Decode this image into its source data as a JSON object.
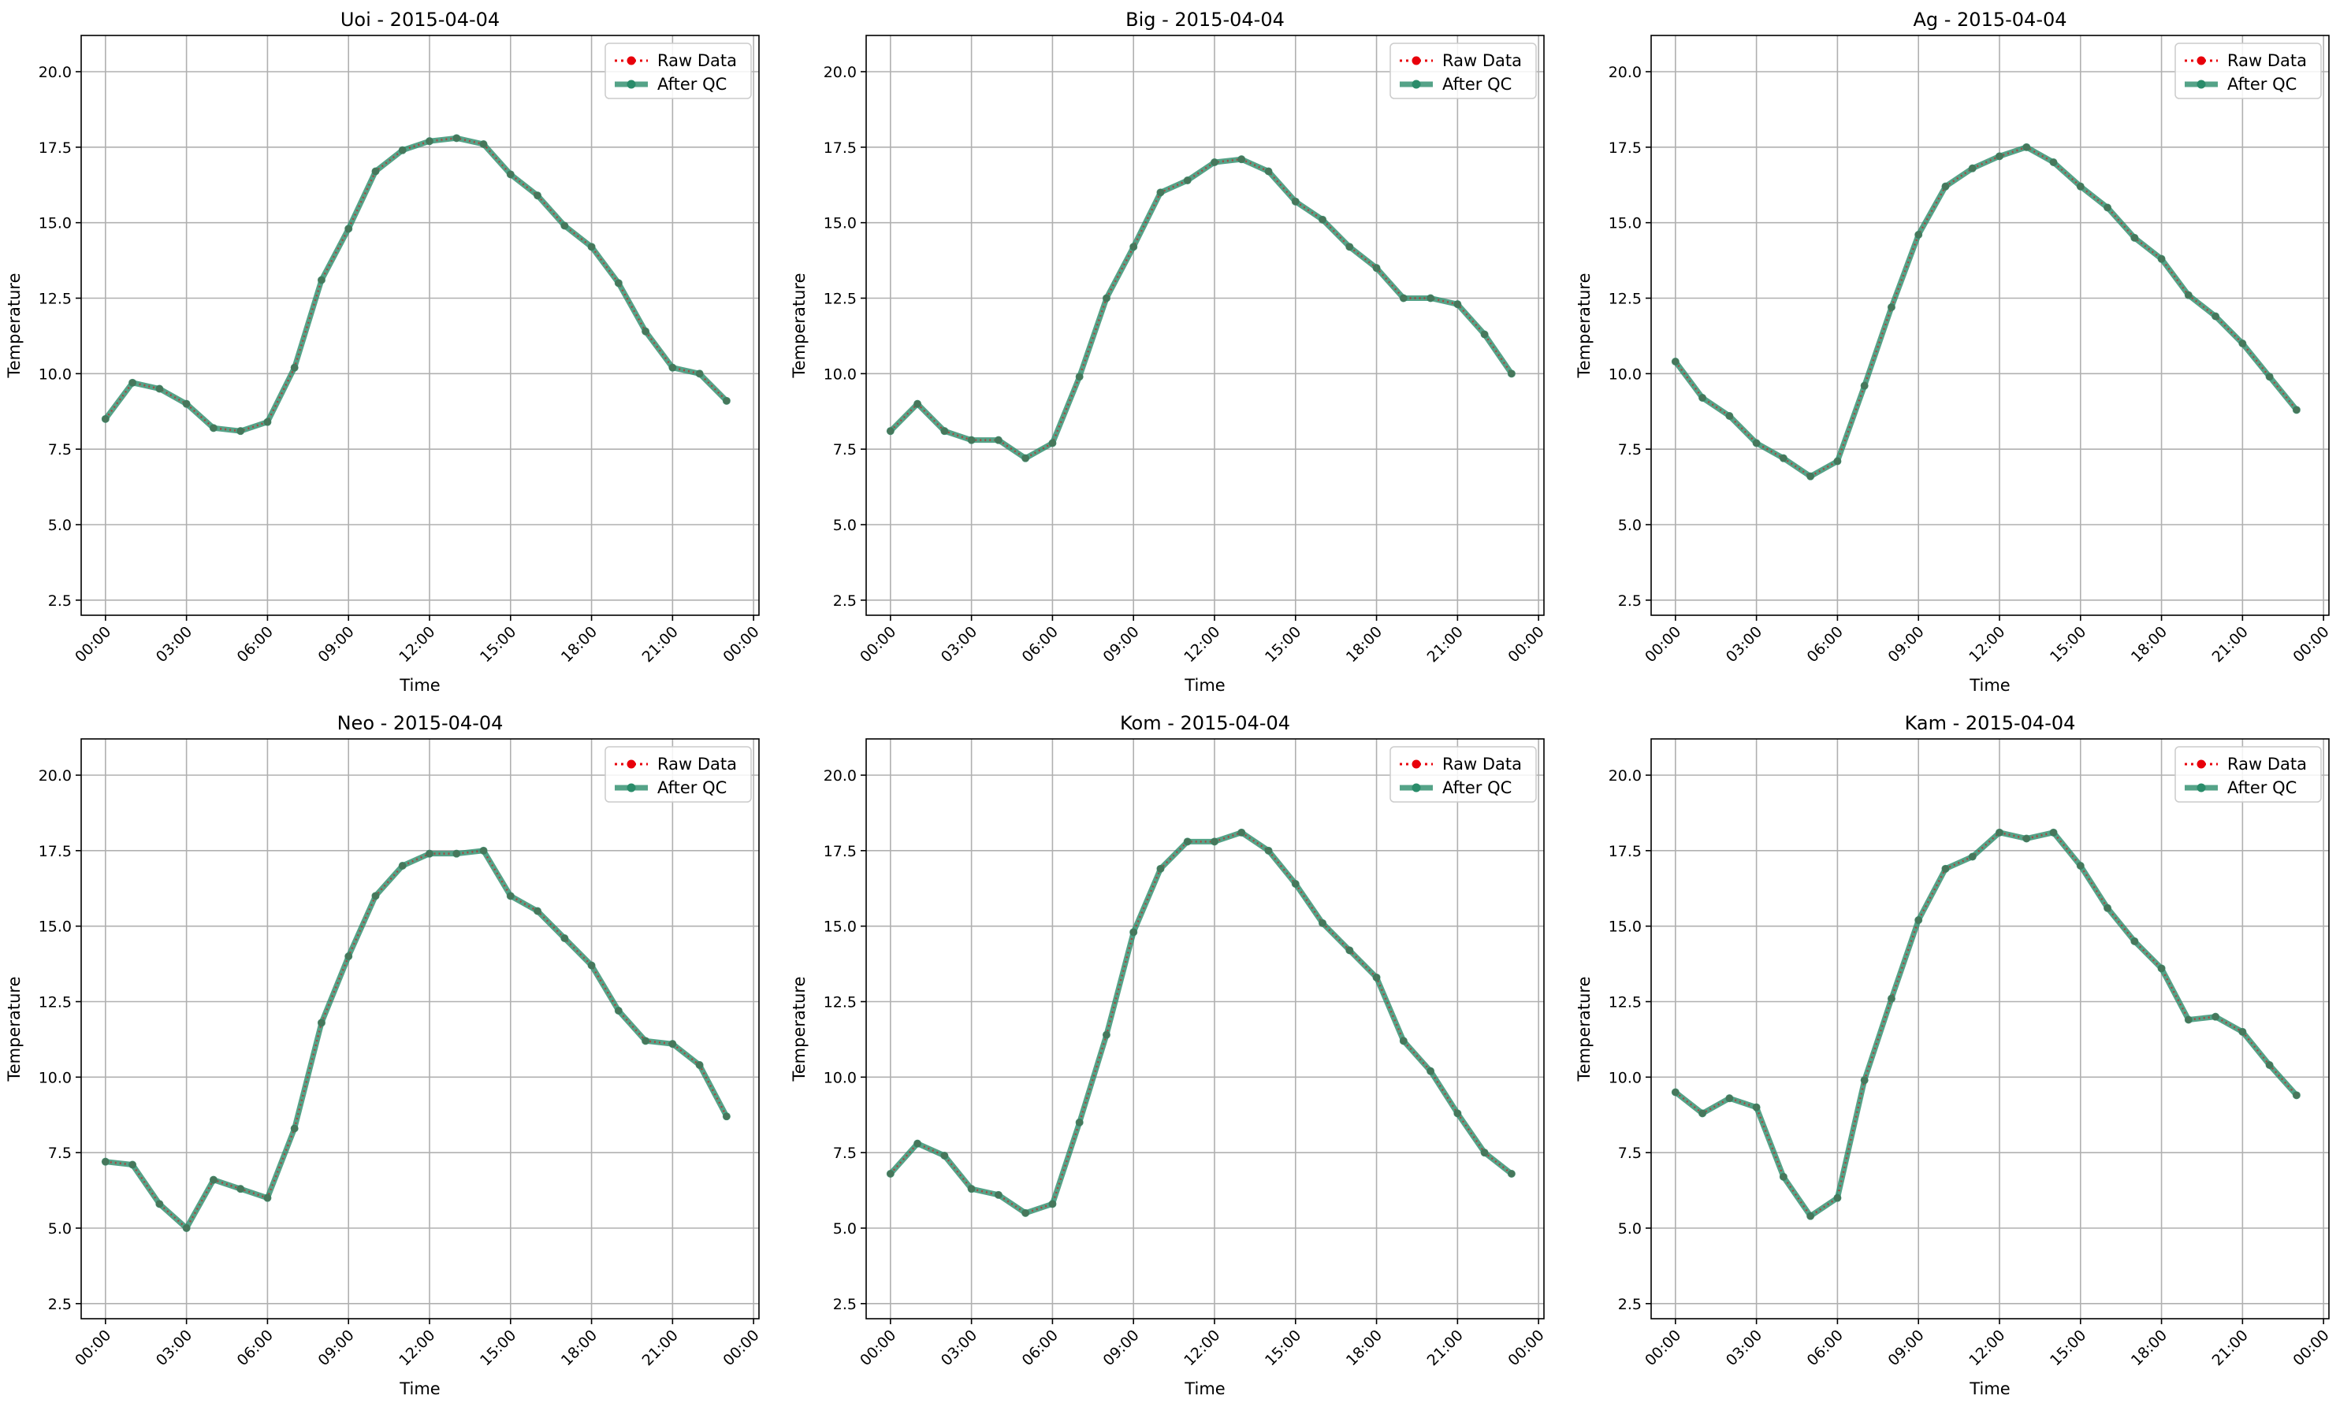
{
  "figure": {
    "background": "#ffffff"
  },
  "style": {
    "raw_color": "#e8000b",
    "qc_color": "#2a8c6a",
    "grid_color": "#b0b0b0"
  },
  "chart_data": [
    {
      "type": "line",
      "title": "Uoi - 2015-04-04",
      "xlabel": "Time",
      "ylabel": "Temperature",
      "ylim": [
        2.0,
        21.2
      ],
      "xlim": [
        -0.9,
        24.2
      ],
      "yticks": [
        2.5,
        5.0,
        7.5,
        10.0,
        12.5,
        15.0,
        17.5,
        20.0
      ],
      "xticks": [
        0,
        3,
        6,
        9,
        12,
        15,
        18,
        21,
        24
      ],
      "xticklabels": [
        "00:00",
        "03:00",
        "06:00",
        "09:00",
        "12:00",
        "15:00",
        "18:00",
        "21:00",
        "00:00"
      ],
      "grid": true,
      "legend": "top-right",
      "x": [
        0,
        1,
        2,
        3,
        4,
        5,
        6,
        7,
        8,
        9,
        10,
        11,
        12,
        13,
        14,
        15,
        16,
        17,
        18,
        19,
        20,
        21,
        22,
        23
      ],
      "series": [
        {
          "name": "Raw Data",
          "values": [
            8.5,
            9.7,
            9.5,
            9.0,
            8.2,
            8.1,
            8.4,
            10.2,
            13.1,
            14.8,
            16.7,
            17.4,
            17.7,
            17.8,
            17.6,
            16.6,
            15.9,
            14.9,
            14.2,
            13.0,
            11.4,
            10.2,
            10.0,
            9.1
          ]
        },
        {
          "name": "After QC",
          "values": [
            8.5,
            9.7,
            9.5,
            9.0,
            8.2,
            8.1,
            8.4,
            10.2,
            13.1,
            14.8,
            16.7,
            17.4,
            17.7,
            17.8,
            17.6,
            16.6,
            15.9,
            14.9,
            14.2,
            13.0,
            11.4,
            10.2,
            10.0,
            9.1
          ]
        }
      ]
    },
    {
      "type": "line",
      "title": "Big - 2015-04-04",
      "xlabel": "Time",
      "ylabel": "Temperature",
      "ylim": [
        2.0,
        21.2
      ],
      "xlim": [
        -0.9,
        24.2
      ],
      "yticks": [
        2.5,
        5.0,
        7.5,
        10.0,
        12.5,
        15.0,
        17.5,
        20.0
      ],
      "xticks": [
        0,
        3,
        6,
        9,
        12,
        15,
        18,
        21,
        24
      ],
      "xticklabels": [
        "00:00",
        "03:00",
        "06:00",
        "09:00",
        "12:00",
        "15:00",
        "18:00",
        "21:00",
        "00:00"
      ],
      "grid": true,
      "legend": "top-right",
      "x": [
        0,
        1,
        2,
        3,
        4,
        5,
        6,
        7,
        8,
        9,
        10,
        11,
        12,
        13,
        14,
        15,
        16,
        17,
        18,
        19,
        20,
        21,
        22,
        23
      ],
      "series": [
        {
          "name": "Raw Data",
          "values": [
            8.1,
            9.0,
            8.1,
            7.8,
            7.8,
            7.2,
            7.7,
            9.9,
            12.5,
            14.2,
            16.0,
            16.4,
            17.0,
            17.1,
            16.7,
            15.7,
            15.1,
            14.2,
            13.5,
            12.5,
            12.5,
            12.3,
            11.3,
            10.0
          ]
        },
        {
          "name": "After QC",
          "values": [
            8.1,
            9.0,
            8.1,
            7.8,
            7.8,
            7.2,
            7.7,
            9.9,
            12.5,
            14.2,
            16.0,
            16.4,
            17.0,
            17.1,
            16.7,
            15.7,
            15.1,
            14.2,
            13.5,
            12.5,
            12.5,
            12.3,
            11.3,
            10.0
          ]
        }
      ]
    },
    {
      "type": "line",
      "title": "Ag - 2015-04-04",
      "xlabel": "Time",
      "ylabel": "Temperature",
      "ylim": [
        2.0,
        21.2
      ],
      "xlim": [
        -0.9,
        24.2
      ],
      "yticks": [
        2.5,
        5.0,
        7.5,
        10.0,
        12.5,
        15.0,
        17.5,
        20.0
      ],
      "xticks": [
        0,
        3,
        6,
        9,
        12,
        15,
        18,
        21,
        24
      ],
      "xticklabels": [
        "00:00",
        "03:00",
        "06:00",
        "09:00",
        "12:00",
        "15:00",
        "18:00",
        "21:00",
        "00:00"
      ],
      "grid": true,
      "legend": "top-right",
      "x": [
        0,
        1,
        2,
        3,
        4,
        5,
        6,
        7,
        8,
        9,
        10,
        11,
        12,
        13,
        14,
        15,
        16,
        17,
        18,
        19,
        20,
        21,
        22,
        23
      ],
      "series": [
        {
          "name": "Raw Data",
          "values": [
            10.4,
            9.2,
            8.6,
            7.7,
            7.2,
            6.6,
            7.1,
            9.6,
            12.2,
            14.6,
            16.2,
            16.8,
            17.2,
            17.5,
            17.0,
            16.2,
            15.5,
            14.5,
            13.8,
            12.6,
            11.9,
            11.0,
            9.9,
            8.8
          ]
        },
        {
          "name": "After QC",
          "values": [
            10.4,
            9.2,
            8.6,
            7.7,
            7.2,
            6.6,
            7.1,
            9.6,
            12.2,
            14.6,
            16.2,
            16.8,
            17.2,
            17.5,
            17.0,
            16.2,
            15.5,
            14.5,
            13.8,
            12.6,
            11.9,
            11.0,
            9.9,
            8.8
          ]
        }
      ]
    },
    {
      "type": "line",
      "title": "Neo - 2015-04-04",
      "xlabel": "Time",
      "ylabel": "Temperature",
      "ylim": [
        2.0,
        21.2
      ],
      "xlim": [
        -0.9,
        24.2
      ],
      "yticks": [
        2.5,
        5.0,
        7.5,
        10.0,
        12.5,
        15.0,
        17.5,
        20.0
      ],
      "xticks": [
        0,
        3,
        6,
        9,
        12,
        15,
        18,
        21,
        24
      ],
      "xticklabels": [
        "00:00",
        "03:00",
        "06:00",
        "09:00",
        "12:00",
        "15:00",
        "18:00",
        "21:00",
        "00:00"
      ],
      "grid": true,
      "legend": "top-right",
      "x": [
        0,
        1,
        2,
        3,
        4,
        5,
        6,
        7,
        8,
        9,
        10,
        11,
        12,
        13,
        14,
        15,
        16,
        17,
        18,
        19,
        20,
        21,
        22,
        23
      ],
      "series": [
        {
          "name": "Raw Data",
          "values": [
            7.2,
            7.1,
            5.8,
            5.0,
            6.6,
            6.3,
            6.0,
            8.3,
            11.8,
            14.0,
            16.0,
            17.0,
            17.4,
            17.4,
            17.5,
            16.0,
            15.5,
            14.6,
            13.7,
            12.2,
            11.2,
            11.1,
            10.4,
            8.7
          ]
        },
        {
          "name": "After QC",
          "values": [
            7.2,
            7.1,
            5.8,
            5.0,
            6.6,
            6.3,
            6.0,
            8.3,
            11.8,
            14.0,
            16.0,
            17.0,
            17.4,
            17.4,
            17.5,
            16.0,
            15.5,
            14.6,
            13.7,
            12.2,
            11.2,
            11.1,
            10.4,
            8.7
          ]
        }
      ]
    },
    {
      "type": "line",
      "title": "Kom - 2015-04-04",
      "xlabel": "Time",
      "ylabel": "Temperature",
      "ylim": [
        2.0,
        21.2
      ],
      "xlim": [
        -0.9,
        24.2
      ],
      "yticks": [
        2.5,
        5.0,
        7.5,
        10.0,
        12.5,
        15.0,
        17.5,
        20.0
      ],
      "xticks": [
        0,
        3,
        6,
        9,
        12,
        15,
        18,
        21,
        24
      ],
      "xticklabels": [
        "00:00",
        "03:00",
        "06:00",
        "09:00",
        "12:00",
        "15:00",
        "18:00",
        "21:00",
        "00:00"
      ],
      "grid": true,
      "legend": "top-right",
      "x": [
        0,
        1,
        2,
        3,
        4,
        5,
        6,
        7,
        8,
        9,
        10,
        11,
        12,
        13,
        14,
        15,
        16,
        17,
        18,
        19,
        20,
        21,
        22,
        23
      ],
      "series": [
        {
          "name": "Raw Data",
          "values": [
            6.8,
            7.8,
            7.4,
            6.3,
            6.1,
            5.5,
            5.8,
            8.5,
            11.4,
            14.8,
            16.9,
            17.8,
            17.8,
            18.1,
            17.5,
            16.4,
            15.1,
            14.2,
            13.3,
            11.2,
            10.2,
            8.8,
            7.5,
            6.8
          ]
        },
        {
          "name": "After QC",
          "values": [
            6.8,
            7.8,
            7.4,
            6.3,
            6.1,
            5.5,
            5.8,
            8.5,
            11.4,
            14.8,
            16.9,
            17.8,
            17.8,
            18.1,
            17.5,
            16.4,
            15.1,
            14.2,
            13.3,
            11.2,
            10.2,
            8.8,
            7.5,
            6.8
          ]
        }
      ]
    },
    {
      "type": "line",
      "title": "Kam - 2015-04-04",
      "xlabel": "Time",
      "ylabel": "Temperature",
      "ylim": [
        2.0,
        21.2
      ],
      "xlim": [
        -0.9,
        24.2
      ],
      "yticks": [
        2.5,
        5.0,
        7.5,
        10.0,
        12.5,
        15.0,
        17.5,
        20.0
      ],
      "xticks": [
        0,
        3,
        6,
        9,
        12,
        15,
        18,
        21,
        24
      ],
      "xticklabels": [
        "00:00",
        "03:00",
        "06:00",
        "09:00",
        "12:00",
        "15:00",
        "18:00",
        "21:00",
        "00:00"
      ],
      "grid": true,
      "legend": "top-right",
      "x": [
        0,
        1,
        2,
        3,
        4,
        5,
        6,
        7,
        8,
        9,
        10,
        11,
        12,
        13,
        14,
        15,
        16,
        17,
        18,
        19,
        20,
        21,
        22,
        23
      ],
      "series": [
        {
          "name": "Raw Data",
          "values": [
            9.5,
            8.8,
            9.3,
            9.0,
            6.7,
            5.4,
            6.0,
            9.9,
            12.6,
            15.2,
            16.9,
            17.3,
            18.1,
            17.9,
            18.1,
            17.0,
            15.6,
            14.5,
            13.6,
            11.9,
            12.0,
            11.5,
            10.4,
            9.4
          ]
        },
        {
          "name": "After QC",
          "values": [
            9.5,
            8.8,
            9.3,
            9.0,
            6.7,
            5.4,
            6.0,
            9.9,
            12.6,
            15.2,
            16.9,
            17.3,
            18.1,
            17.9,
            18.1,
            17.0,
            15.6,
            14.5,
            13.6,
            11.9,
            12.0,
            11.5,
            10.4,
            9.4
          ]
        }
      ]
    }
  ]
}
